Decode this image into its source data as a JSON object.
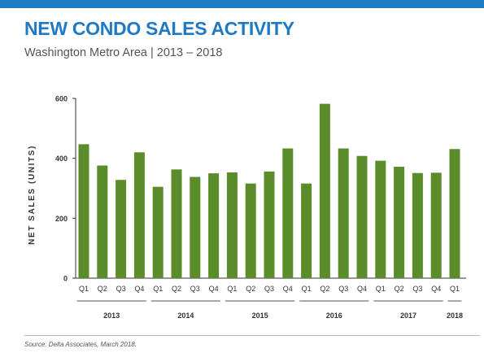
{
  "header": {
    "title": "NEW CONDO SALES ACTIVITY",
    "subtitle": "Washington Metro Area  |  2013 – 2018"
  },
  "source": "Source: Delta Associates, March 2018.",
  "colors": {
    "bar": "#5b8c2a",
    "accent": "#1f7ac4",
    "axis": "#333333"
  },
  "chart_data": {
    "type": "bar",
    "title": "NEW CONDO SALES ACTIVITY",
    "subtitle": "Washington Metro Area | 2013 – 2018",
    "xlabel": "",
    "ylabel": "NET SALES (UNITS)",
    "ylim": [
      0,
      600
    ],
    "yticks": [
      0,
      200,
      400,
      600
    ],
    "grid": false,
    "categories": [
      "Q1",
      "Q2",
      "Q3",
      "Q4",
      "Q1",
      "Q2",
      "Q3",
      "Q4",
      "Q1",
      "Q2",
      "Q3",
      "Q4",
      "Q1",
      "Q2",
      "Q3",
      "Q4",
      "Q1",
      "Q2",
      "Q3",
      "Q4",
      "Q1"
    ],
    "groups": [
      {
        "label": "2013",
        "start": 0,
        "count": 4
      },
      {
        "label": "2014",
        "start": 4,
        "count": 4
      },
      {
        "label": "2015",
        "start": 8,
        "count": 4
      },
      {
        "label": "2016",
        "start": 12,
        "count": 4
      },
      {
        "label": "2017",
        "start": 16,
        "count": 4
      },
      {
        "label": "2018",
        "start": 20,
        "count": 1
      }
    ],
    "values": [
      447,
      376,
      328,
      420,
      305,
      363,
      338,
      350,
      353,
      316,
      356,
      433,
      316,
      582,
      433,
      408,
      392,
      372,
      351,
      352,
      431
    ]
  }
}
